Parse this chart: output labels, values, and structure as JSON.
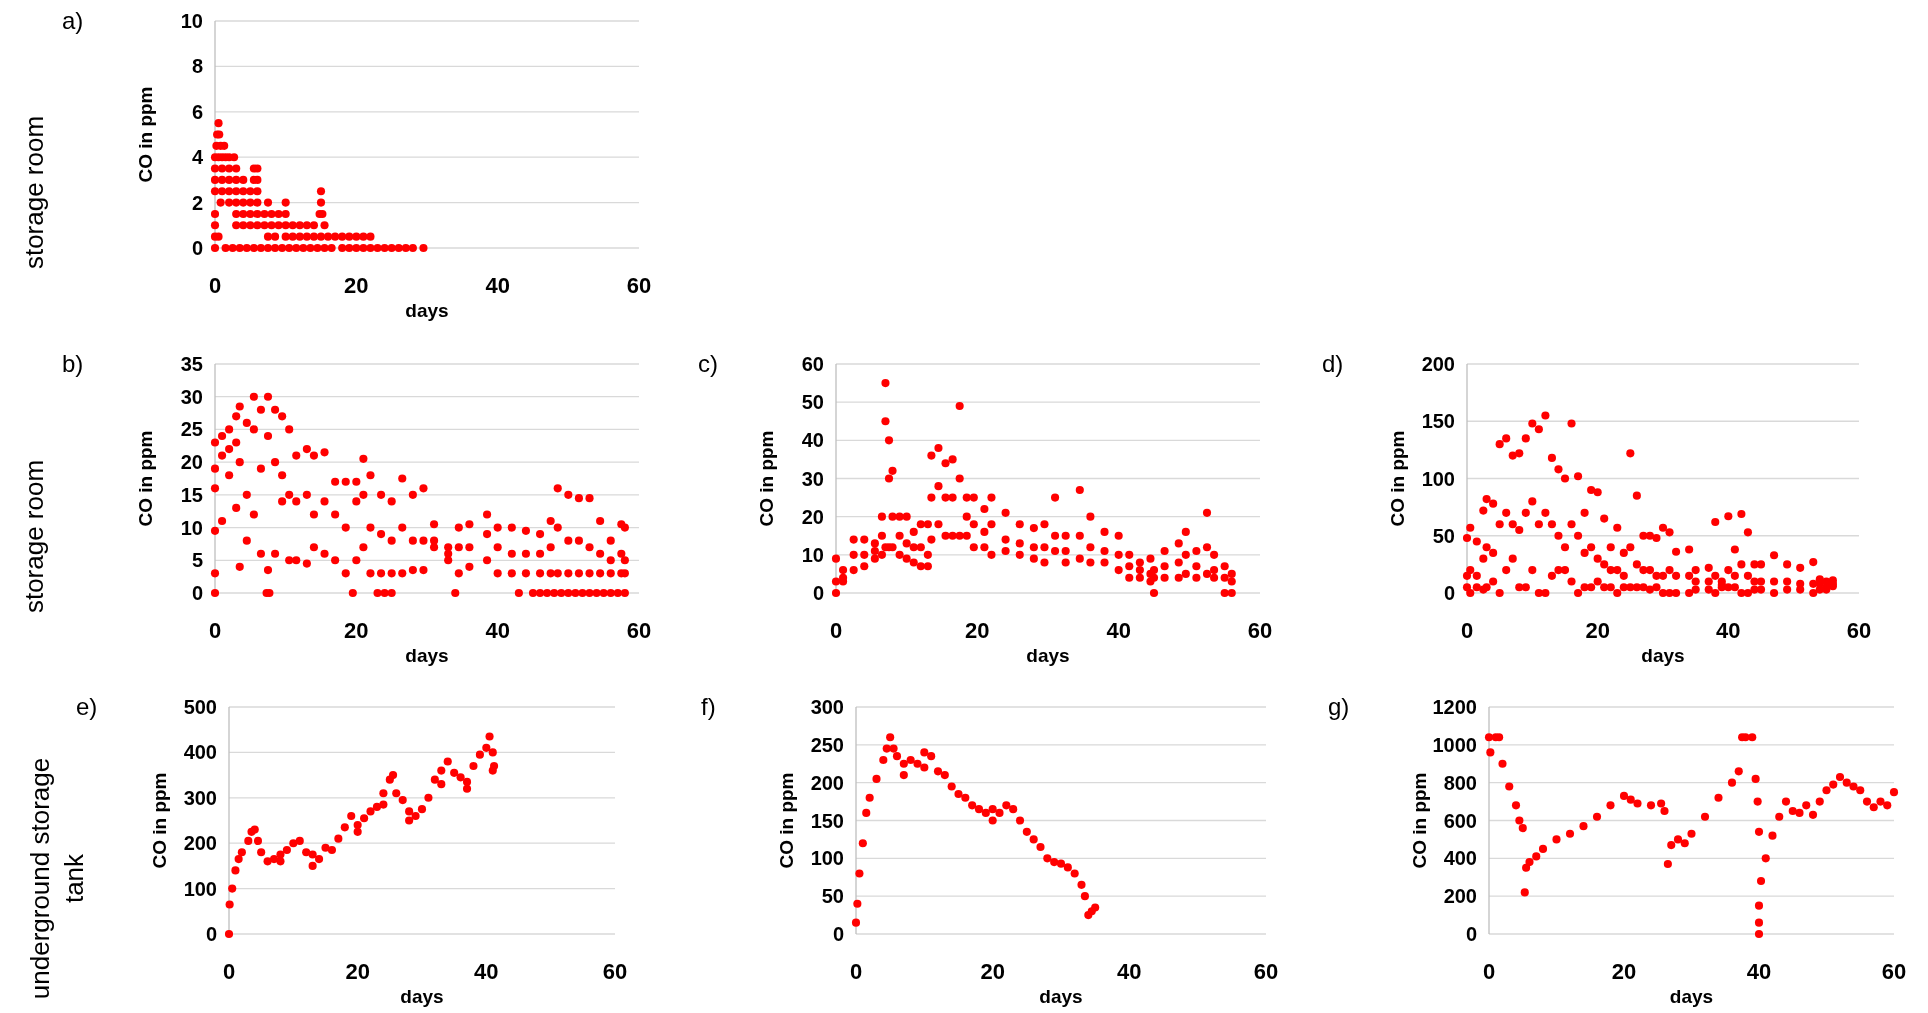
{
  "chart_data": [
    {
      "type": "scatter",
      "title": "a)",
      "xlabel": "days",
      "ylabel": "CO in ppm",
      "annotations": [
        "storage room"
      ],
      "color": "#ff0000",
      "marker": "circle",
      "grid": "y",
      "xlim": [
        0,
        60
      ],
      "xticks": [
        0,
        20,
        40,
        60
      ],
      "ylim": [
        0,
        10
      ],
      "yticks": [
        0,
        2,
        4,
        6,
        8,
        10
      ],
      "x": [
        0.5,
        0.3,
        0.6,
        0.2,
        0.8,
        1.3,
        0,
        0.5,
        1,
        1.5,
        2,
        2.7,
        0,
        1,
        2,
        3,
        5.5,
        6,
        0,
        1,
        2,
        3,
        4,
        5.5,
        6,
        0,
        1,
        2,
        3,
        4,
        5,
        6,
        15,
        0.8,
        2,
        3,
        4,
        5,
        6,
        7.5,
        10,
        15,
        0,
        3,
        4,
        5,
        6,
        7,
        8,
        9,
        10,
        14.8,
        15.2,
        0,
        3,
        4,
        5,
        6,
        7,
        8,
        9,
        10,
        11,
        12,
        13,
        14,
        15.5,
        0,
        0.5,
        7.5,
        8.5,
        10,
        11,
        12,
        13,
        14,
        15,
        16,
        17,
        18,
        19,
        20,
        21,
        22,
        0,
        1.5,
        2.5,
        3.5,
        4.5,
        5.5,
        6.5,
        7.5,
        8.5,
        9.5,
        10.5,
        11.5,
        12.5,
        13.5,
        14.5,
        15.5,
        16.5,
        18,
        19,
        20,
        21,
        22,
        23,
        24,
        25,
        26,
        27,
        28,
        29.5
      ],
      "values": [
        5.5,
        5,
        5,
        4.5,
        4.5,
        4.5,
        4,
        4,
        4,
        4,
        4,
        4,
        3.5,
        3.5,
        3.5,
        3.5,
        3.5,
        3.5,
        3,
        3,
        3,
        3,
        3,
        3,
        3,
        2.5,
        2.5,
        2.5,
        2.5,
        2.5,
        2.5,
        2.5,
        2.5,
        2,
        2,
        2,
        2,
        2,
        2,
        2,
        2,
        2,
        1.5,
        1.5,
        1.5,
        1.5,
        1.5,
        1.5,
        1.5,
        1.5,
        1.5,
        1.5,
        1.5,
        1,
        1,
        1,
        1,
        1,
        1,
        1,
        1,
        1,
        1,
        1,
        1,
        1,
        1,
        0.5,
        0.5,
        0.5,
        0.5,
        0.5,
        0.5,
        0.5,
        0.5,
        0.5,
        0.5,
        0.5,
        0.5,
        0.5,
        0.5,
        0.5,
        0.5,
        0.5,
        0,
        0,
        0,
        0,
        0,
        0,
        0,
        0,
        0,
        0,
        0,
        0,
        0,
        0,
        0,
        0,
        0,
        0,
        0,
        0,
        0,
        0,
        0,
        0,
        0,
        0,
        0,
        0,
        0
      ]
    },
    {
      "type": "scatter",
      "title": "b)",
      "xlabel": "days",
      "ylabel": "CO in ppm",
      "annotations": [
        "storage room"
      ],
      "color": "#ff0000",
      "marker": "circle",
      "grid": "y",
      "xlim": [
        0,
        60
      ],
      "xticks": [
        0,
        20,
        40,
        60
      ],
      "ylim": [
        0,
        35
      ],
      "yticks": [
        0,
        5,
        10,
        15,
        20,
        25,
        30,
        35
      ],
      "x": [
        0,
        0,
        0,
        1,
        1,
        1,
        2,
        2,
        2,
        3,
        3,
        3,
        3.5,
        3.5,
        3.5,
        4.5,
        4.5,
        4.5,
        5.5,
        5.5,
        5.5,
        6.5,
        6.5,
        6.5,
        7.5,
        7.5,
        7.5,
        8.5,
        8.5,
        8.5,
        9.5,
        9.5,
        9.5,
        10.5,
        10.5,
        10.5,
        11.5,
        11.5,
        11.5,
        13,
        13,
        13,
        14,
        14,
        14,
        15.5,
        15.5,
        15.5,
        17,
        17,
        17,
        18.5,
        18.5,
        18.5,
        20,
        20,
        20,
        21,
        21,
        21,
        22,
        22,
        22,
        23.5,
        23.5,
        23.5,
        25,
        25,
        25,
        26.5,
        26.5,
        26.5,
        28,
        28,
        28,
        29.5,
        29.5,
        29.5,
        31,
        31,
        31,
        33,
        33,
        33,
        34.5,
        34.5,
        34.5,
        36,
        36,
        36,
        38.5,
        38.5,
        38.5,
        40,
        40,
        40,
        42,
        42,
        42,
        44,
        44,
        44,
        46,
        46,
        46,
        47.5,
        47.5,
        47.5,
        48.5,
        48.5,
        48.5,
        50,
        50,
        50,
        51.5,
        51.5,
        51.5,
        53,
        53,
        53,
        54.5,
        54.5,
        54.5,
        56,
        56,
        56,
        57.5,
        57.5,
        57.5,
        58,
        58,
        58,
        0,
        0,
        0,
        7.3,
        7.7,
        19.5,
        23,
        24,
        25,
        34,
        43,
        45,
        46,
        47,
        48,
        49,
        50,
        51,
        52,
        53,
        54,
        55,
        56,
        57,
        58
      ],
      "values": [
        23,
        19,
        16,
        24,
        21,
        11,
        25,
        22,
        18,
        27,
        23,
        13,
        28.5,
        20,
        4,
        26,
        15,
        8,
        30,
        25,
        12,
        28,
        19,
        6,
        30,
        24,
        3.5,
        28,
        20,
        6,
        27,
        18,
        14,
        25,
        15,
        5,
        21,
        14,
        5,
        22,
        15,
        4.5,
        21,
        12,
        7,
        21.5,
        14,
        6,
        17,
        12,
        5,
        17,
        10,
        3,
        17,
        14,
        5,
        20.5,
        15,
        7,
        18,
        10,
        3,
        15,
        9,
        3,
        14,
        8,
        3,
        17.5,
        10,
        3,
        15,
        8,
        3.5,
        16,
        8,
        3.5,
        10.5,
        8,
        7,
        7,
        6,
        5,
        10,
        7,
        3,
        10.5,
        7,
        4,
        12,
        9,
        5,
        10,
        7,
        3,
        10,
        6,
        3,
        9.5,
        6,
        3,
        9,
        6,
        3,
        11,
        7,
        3,
        16,
        10,
        3,
        15,
        8,
        3,
        14.5,
        8,
        3,
        14.5,
        7,
        3,
        11,
        6,
        3,
        8,
        5,
        3,
        10.5,
        6,
        3,
        10,
        5,
        3,
        9.5,
        3,
        0,
        0,
        0,
        0,
        0,
        0,
        0,
        0,
        0,
        0,
        0,
        0,
        0,
        0,
        0,
        0,
        0,
        0,
        0,
        0,
        0,
        0,
        0
      ]
    },
    {
      "type": "scatter",
      "title": "c)",
      "xlabel": "days",
      "ylabel": "CO in ppm",
      "color": "#ff0000",
      "marker": "circle",
      "grid": "y",
      "xlim": [
        0,
        60
      ],
      "xticks": [
        0,
        20,
        40,
        60
      ],
      "ylim": [
        0,
        60
      ],
      "yticks": [
        0,
        10,
        20,
        30,
        40,
        50,
        60
      ],
      "x": [
        0,
        0,
        0,
        1,
        1,
        1,
        2.5,
        2.5,
        2.5,
        4,
        4,
        4,
        5.5,
        5.5,
        5.5,
        6.5,
        6.5,
        6.5,
        7,
        7,
        7,
        7.5,
        7.5,
        7.5,
        8,
        8,
        8,
        9,
        9,
        9,
        10,
        10,
        10,
        11,
        11,
        11,
        12,
        12,
        12,
        13,
        13,
        13,
        13.5,
        13.5,
        13.5,
        14.5,
        14.5,
        14.5,
        15.5,
        15.5,
        15.5,
        16.5,
        16.5,
        16.5,
        17.5,
        17.5,
        17.5,
        18.5,
        18.5,
        18.5,
        19.5,
        19.5,
        19.5,
        21,
        21,
        21,
        22,
        22,
        22,
        24,
        24,
        24,
        26,
        26,
        26,
        28,
        28,
        28,
        29.5,
        29.5,
        29.5,
        31,
        31,
        31,
        32.5,
        32.5,
        32.5,
        34.5,
        34.5,
        34.5,
        36,
        36,
        36,
        38,
        38,
        38,
        40,
        40,
        40,
        41.5,
        41.5,
        41.5,
        43,
        43,
        43,
        44.5,
        44.5,
        44.5,
        45,
        45,
        45,
        46.5,
        46.5,
        46.5,
        48.5,
        48.5,
        48.5,
        49.5,
        49.5,
        49.5,
        51,
        51,
        51,
        52.5,
        52.5,
        52.5,
        53.5,
        53.5,
        53.5,
        55,
        55,
        55,
        56,
        56,
        56
      ],
      "values": [
        3,
        9,
        0,
        6,
        4,
        3,
        14,
        10,
        6,
        14,
        10,
        7,
        13,
        11,
        9,
        20,
        15,
        10,
        55,
        45,
        12,
        40,
        30,
        12,
        32,
        20,
        12,
        20,
        15,
        10,
        20,
        13,
        9,
        16,
        12,
        8,
        18,
        12,
        7,
        18,
        10,
        7,
        36,
        25,
        14,
        38,
        28,
        18,
        34,
        25,
        15,
        35,
        25,
        15,
        49,
        30,
        15,
        25,
        20,
        15,
        25,
        18,
        12,
        22,
        16,
        12,
        25,
        18,
        10,
        21,
        14,
        11,
        18,
        13,
        10,
        17,
        12,
        9,
        18,
        12,
        8,
        25,
        15,
        11,
        15,
        11,
        8,
        27,
        15,
        9,
        20,
        12,
        8,
        16,
        11,
        8,
        15,
        10,
        6,
        10,
        7,
        4,
        8,
        6,
        4,
        9,
        5,
        3,
        6,
        4,
        0,
        11,
        7,
        4,
        13,
        8,
        4,
        16,
        10,
        5,
        11,
        7,
        4,
        21,
        12,
        5,
        10,
        6,
        4,
        7,
        4,
        0,
        5,
        3,
        0
      ]
    },
    {
      "type": "scatter",
      "title": "d)",
      "xlabel": "days",
      "ylabel": "CO in ppm",
      "color": "#ff0000",
      "marker": "circle",
      "grid": "y",
      "xlim": [
        0,
        60
      ],
      "xticks": [
        0,
        20,
        40,
        60
      ],
      "ylim": [
        0,
        200
      ],
      "yticks": [
        0,
        50,
        100,
        150,
        200
      ],
      "x": [
        0,
        0,
        0,
        0.5,
        0.5,
        0.5,
        1.5,
        1.5,
        1.5,
        2.5,
        2.5,
        2.5,
        3,
        3,
        3,
        4,
        4,
        4,
        5,
        5,
        5,
        6,
        6,
        6,
        7,
        7,
        7,
        8,
        8,
        8,
        9,
        9,
        9,
        10,
        10,
        10,
        11,
        11,
        11,
        12,
        12,
        12,
        13,
        13,
        13,
        14,
        14,
        14,
        15,
        15,
        15,
        16,
        16,
        16,
        17,
        17,
        17,
        18,
        18,
        18,
        19,
        19,
        19,
        20,
        20,
        20,
        21,
        21,
        21,
        22,
        22,
        22,
        23,
        23,
        23,
        24,
        24,
        24,
        25,
        25,
        25,
        26,
        26,
        26,
        27,
        27,
        27,
        28,
        28,
        28,
        29,
        29,
        29,
        30,
        30,
        30,
        31,
        31,
        31,
        32,
        32,
        32,
        34,
        34,
        34,
        35,
        35,
        35,
        37,
        37,
        37,
        38,
        38,
        38,
        39,
        39,
        39,
        40,
        40,
        40,
        41,
        41,
        41,
        42,
        42,
        42,
        43,
        43,
        43,
        44,
        44,
        44,
        45,
        45,
        45,
        47,
        47,
        47,
        49,
        49,
        49,
        51,
        51,
        51,
        53,
        53,
        53,
        54,
        54,
        54,
        55,
        55,
        55,
        56,
        56,
        56
      ],
      "values": [
        48,
        15,
        5,
        57,
        20,
        0,
        45,
        15,
        5,
        72,
        30,
        3,
        82,
        40,
        5,
        78,
        35,
        10,
        130,
        60,
        0,
        135,
        70,
        20,
        120,
        60,
        30,
        122,
        55,
        5,
        135,
        70,
        5,
        148,
        80,
        20,
        143,
        60,
        0,
        155,
        70,
        0,
        118,
        60,
        15,
        108,
        50,
        20,
        100,
        40,
        20,
        148,
        60,
        10,
        102,
        50,
        0,
        70,
        35,
        5,
        90,
        40,
        5,
        88,
        30,
        10,
        65,
        25,
        5,
        40,
        20,
        5,
        57,
        20,
        0,
        35,
        15,
        5,
        122,
        40,
        5,
        85,
        25,
        5,
        50,
        20,
        5,
        50,
        20,
        3,
        48,
        15,
        5,
        57,
        15,
        0,
        53,
        20,
        0,
        36,
        15,
        0,
        38,
        15,
        0,
        20,
        10,
        3,
        22,
        10,
        3,
        62,
        15,
        0,
        10,
        7,
        5,
        67,
        20,
        5,
        38,
        15,
        5,
        69,
        25,
        0,
        53,
        15,
        0,
        25,
        10,
        3,
        25,
        10,
        3,
        33,
        10,
        0,
        25,
        10,
        3,
        22,
        8,
        3,
        27,
        8,
        0,
        12,
        8,
        3,
        10,
        5,
        3,
        11,
        8,
        6
      ]
    },
    {
      "type": "scatter",
      "title": "e)",
      "xlabel": "days",
      "ylabel": "CO in ppm",
      "annotations": [
        "underground storage tank"
      ],
      "color": "#ff0000",
      "marker": "circle",
      "grid": "y",
      "xlim": [
        0,
        60
      ],
      "xticks": [
        0,
        20,
        40,
        60
      ],
      "ylim": [
        0,
        500
      ],
      "yticks": [
        0,
        100,
        200,
        300,
        400,
        500
      ],
      "x": [
        0,
        0.1,
        0.5,
        1,
        1.5,
        2,
        3,
        3.5,
        4,
        4.5,
        5,
        6,
        7,
        8,
        9,
        10,
        11,
        12,
        13,
        14,
        15,
        16,
        17,
        18,
        19,
        20,
        21,
        22,
        23,
        24,
        25,
        25.5,
        26,
        27,
        28,
        29,
        30,
        31,
        32,
        33,
        34,
        35,
        36,
        37,
        38,
        39,
        40,
        40.5,
        41,
        41.2,
        8,
        13,
        20,
        24,
        28,
        33,
        37,
        41
      ],
      "values": [
        0,
        65,
        100,
        140,
        165,
        180,
        205,
        225,
        230,
        205,
        180,
        160,
        165,
        175,
        185,
        200,
        205,
        180,
        175,
        165,
        190,
        185,
        210,
        235,
        260,
        240,
        255,
        270,
        280,
        310,
        340,
        350,
        310,
        295,
        270,
        260,
        275,
        300,
        340,
        360,
        380,
        355,
        345,
        335,
        370,
        395,
        410,
        435,
        400,
        370,
        160,
        150,
        225,
        285,
        250,
        330,
        320,
        360
      ]
    },
    {
      "type": "scatter",
      "title": "f)",
      "xlabel": "days",
      "ylabel": "CO in ppm",
      "color": "#ff0000",
      "marker": "circle",
      "grid": "y",
      "xlim": [
        0,
        60
      ],
      "xticks": [
        0,
        20,
        40,
        60
      ],
      "ylim": [
        0,
        300
      ],
      "yticks": [
        0,
        50,
        100,
        150,
        200,
        250,
        300
      ],
      "x": [
        0,
        0.2,
        0.5,
        1,
        1.5,
        2,
        3,
        4,
        4.5,
        5,
        5.5,
        6,
        7,
        8,
        9,
        10,
        11,
        12,
        13,
        14,
        15,
        16,
        17,
        18,
        19,
        20,
        21,
        22,
        23,
        24,
        25,
        26,
        27,
        28,
        29,
        30,
        31,
        32,
        33,
        33.5,
        34,
        34.5,
        35,
        7,
        10,
        20
      ],
      "values": [
        15,
        40,
        80,
        120,
        160,
        180,
        205,
        230,
        245,
        260,
        245,
        235,
        225,
        230,
        225,
        240,
        235,
        215,
        210,
        195,
        185,
        180,
        170,
        165,
        160,
        165,
        160,
        170,
        165,
        150,
        135,
        125,
        115,
        100,
        95,
        93,
        88,
        80,
        65,
        50,
        25,
        30,
        35,
        210,
        220,
        150
      ]
    },
    {
      "type": "scatter",
      "title": "g)",
      "xlabel": "days",
      "ylabel": "CO in ppm",
      "color": "#ff0000",
      "marker": "circle",
      "grid": "y",
      "xlim": [
        0,
        60
      ],
      "xticks": [
        0,
        20,
        40,
        60
      ],
      "ylim": [
        0,
        1200
      ],
      "yticks": [
        0,
        200,
        400,
        600,
        800,
        1000,
        1200
      ],
      "x": [
        0,
        0.2,
        1,
        1.5,
        2,
        3,
        4,
        4.5,
        5,
        5.3,
        5.5,
        6,
        7,
        8,
        10,
        12,
        14,
        16,
        18,
        20,
        21,
        22,
        24,
        25.5,
        26,
        26.5,
        27,
        28,
        29,
        30,
        32,
        34,
        36,
        37,
        37.5,
        38,
        39,
        39.5,
        39.8,
        40,
        40,
        40,
        40,
        40.3,
        41,
        42,
        43,
        44,
        45,
        46,
        47,
        48,
        49,
        50,
        51,
        52,
        53,
        54,
        55,
        56,
        57,
        58,
        59,
        60
      ],
      "values": [
        1040,
        960,
        1040,
        1040,
        900,
        780,
        680,
        600,
        560,
        220,
        350,
        380,
        410,
        450,
        500,
        530,
        570,
        620,
        680,
        730,
        710,
        690,
        680,
        690,
        650,
        370,
        470,
        500,
        480,
        530,
        620,
        720,
        800,
        860,
        1040,
        1040,
        1040,
        820,
        700,
        540,
        150,
        60,
        0,
        280,
        400,
        520,
        620,
        700,
        650,
        640,
        680,
        630,
        700,
        760,
        790,
        830,
        800,
        780,
        760,
        700,
        670,
        700,
        680,
        750
      ]
    }
  ]
}
